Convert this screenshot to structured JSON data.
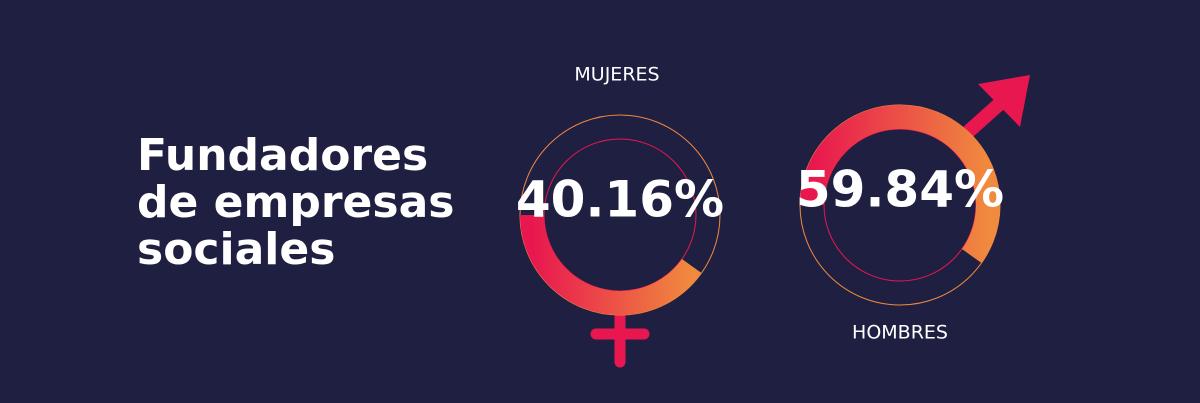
{
  "chart_data": {
    "type": "donut",
    "title": "Fundadores de empresas sociales",
    "categories": [
      "MUJERES",
      "HOMBRES"
    ],
    "values": [
      40.16,
      59.84
    ],
    "value_labels": [
      "40.16%",
      "59.84%"
    ],
    "colors": [
      "#e8174f",
      "#f08a3e"
    ]
  }
}
